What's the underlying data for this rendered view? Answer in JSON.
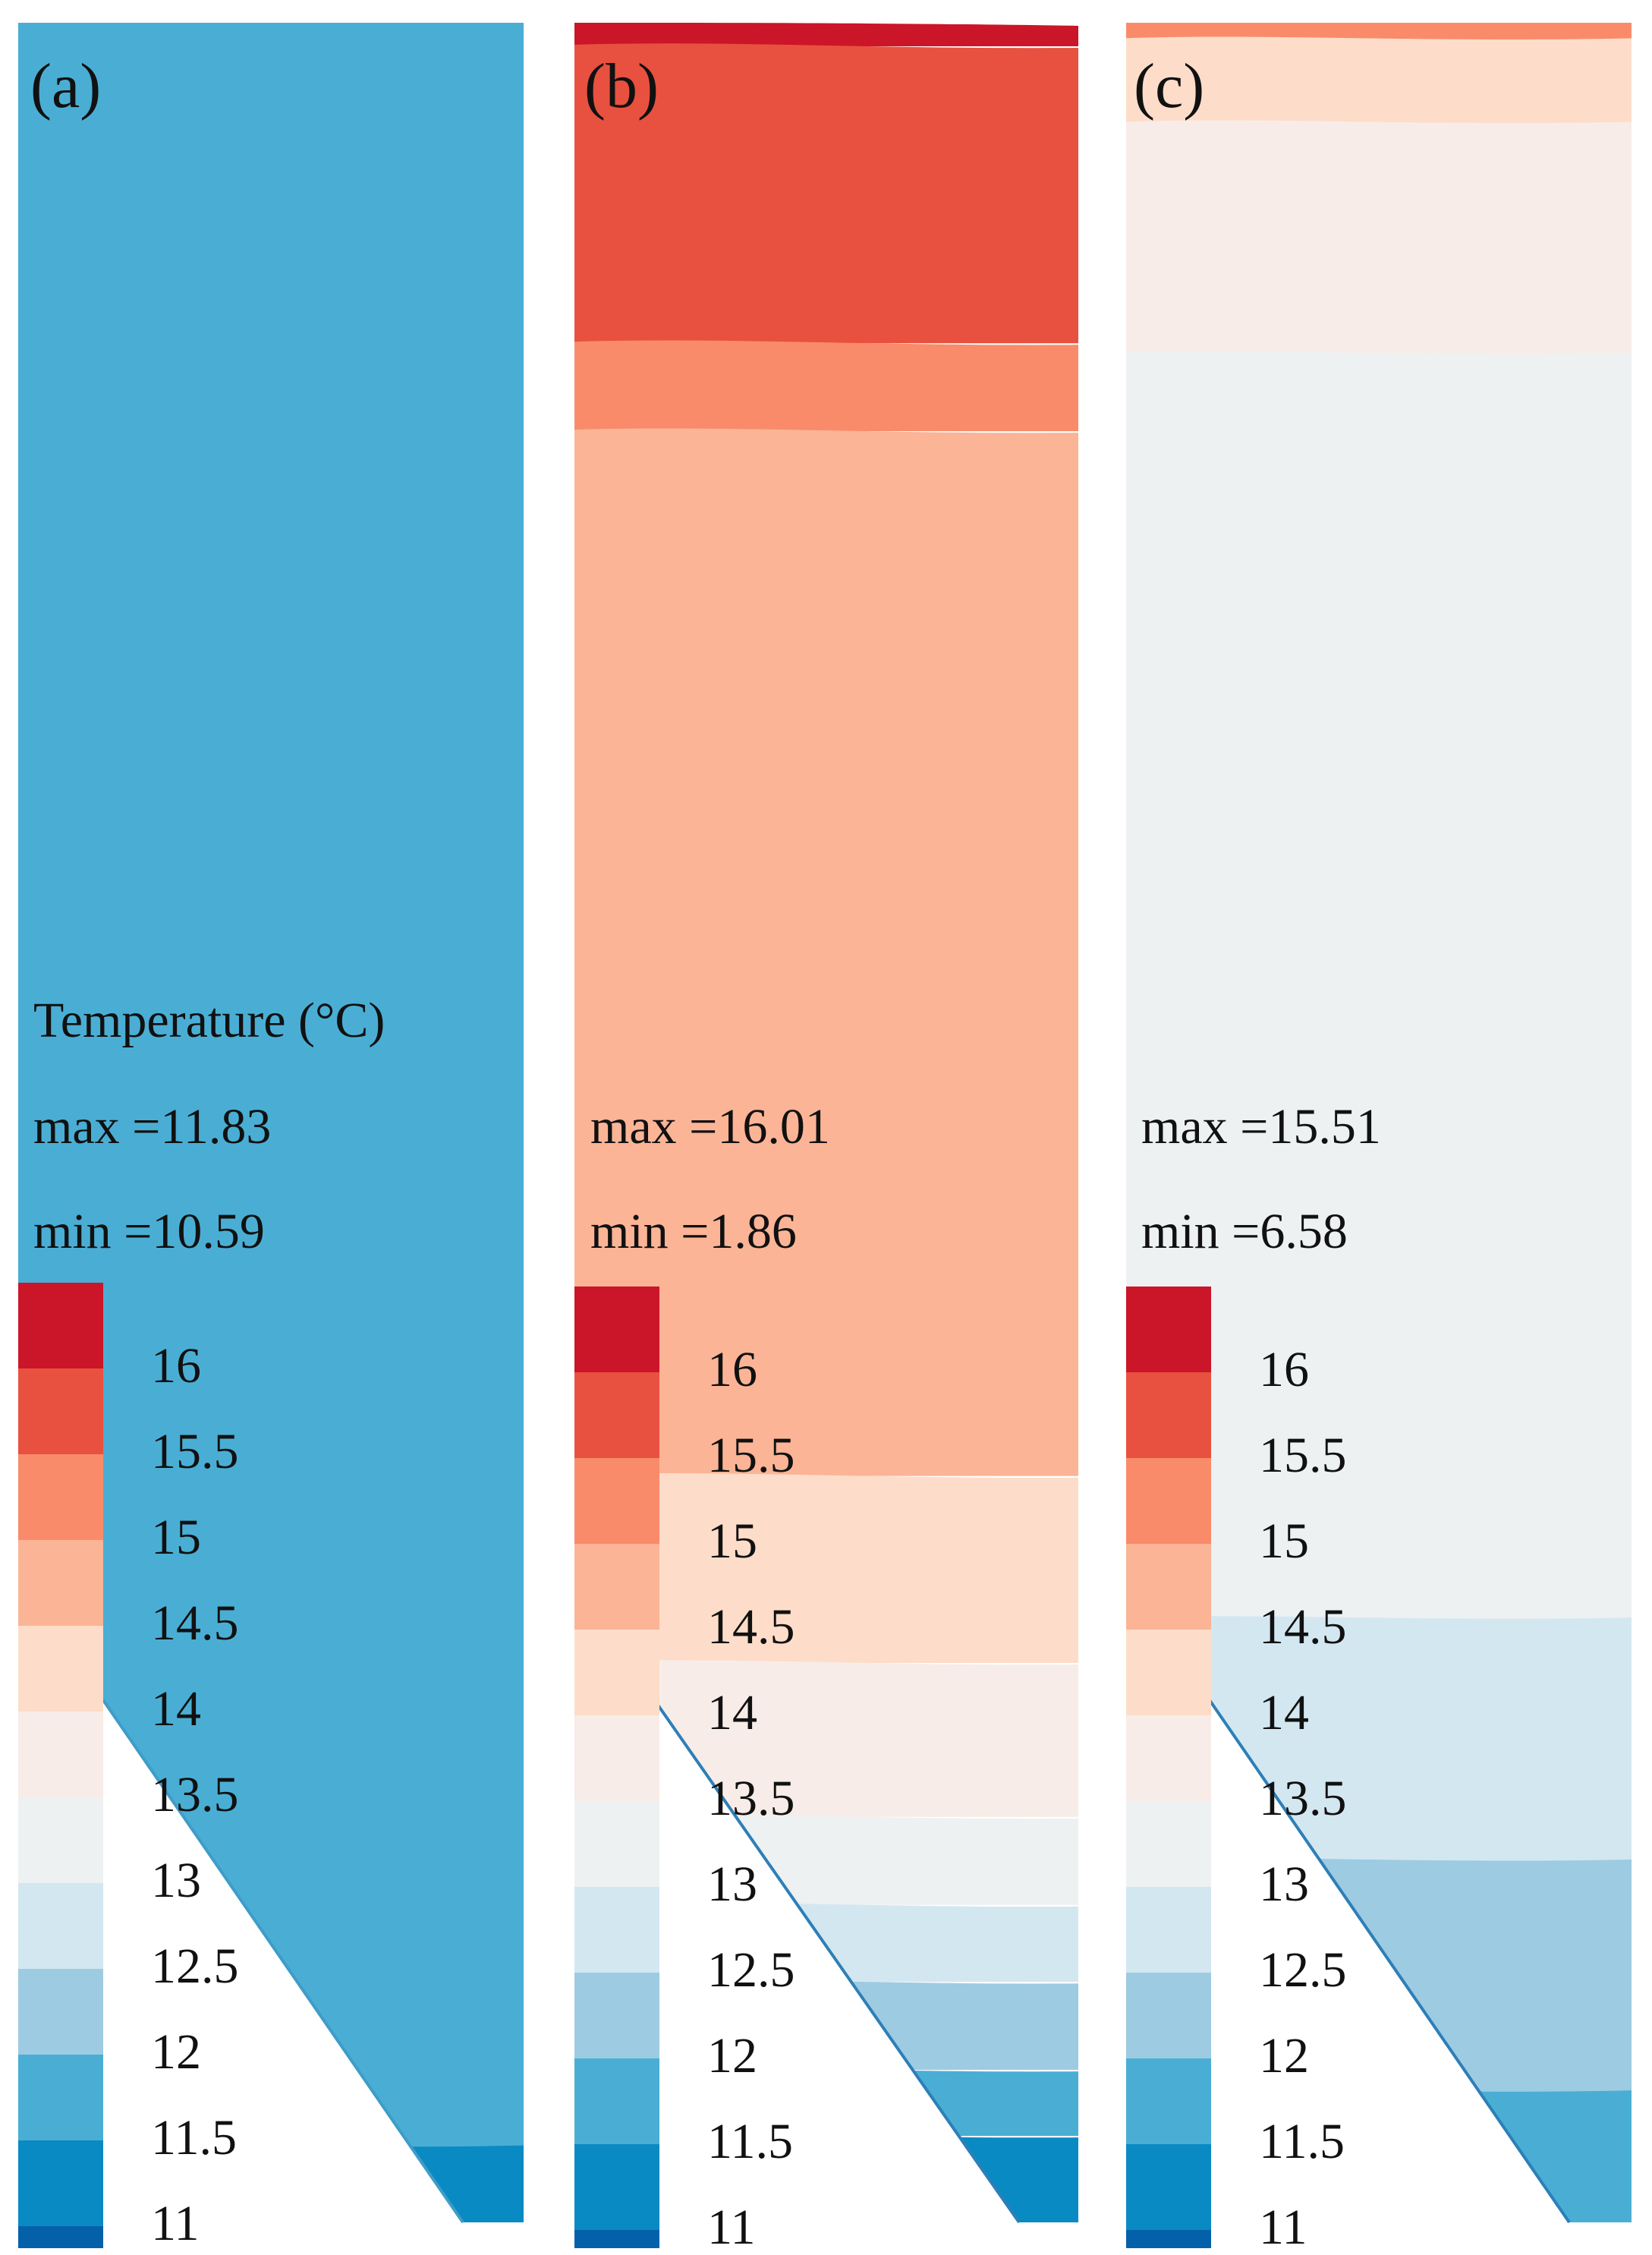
{
  "figure": {
    "colorbar_title": "Temperature (°C)",
    "colorbar_ticks": [
      "16",
      "15.5",
      "15",
      "14.5",
      "14",
      "13.5",
      "13",
      "12.5",
      "12",
      "11.5",
      "11"
    ],
    "colorbar_colors": [
      "#ca1628",
      "#e8513f",
      "#f98b6a",
      "#fbb496",
      "#fdddc9",
      "#f8ece8",
      "#edf1f2",
      "#d3e7f1",
      "#9dcbe2",
      "#4aaed4",
      "#0a8ac2",
      "#0560aa"
    ],
    "panels": [
      {
        "label": "(a)",
        "max_text": "max =11.83",
        "min_text": "min =10.59",
        "max_value": 11.83,
        "min_value": 10.59,
        "bands": [
          {
            "from": 1.0,
            "to": 0.035,
            "color": "#4aaed4"
          },
          {
            "from": 0.035,
            "to": 0.0,
            "color": "#0a8ac2"
          }
        ]
      },
      {
        "label": "(b)",
        "max_text": "max =16.01",
        "min_text": "min =1.86",
        "max_value": 16.01,
        "min_value": 1.86,
        "bands": [
          {
            "from": 1.0,
            "to": 0.99,
            "color": "#ca1628"
          },
          {
            "from": 0.99,
            "to": 0.855,
            "color": "#e8513f"
          },
          {
            "from": 0.855,
            "to": 0.815,
            "color": "#f98b6a"
          },
          {
            "from": 0.815,
            "to": 0.34,
            "color": "#fbb496"
          },
          {
            "from": 0.34,
            "to": 0.255,
            "color": "#fdddc9"
          },
          {
            "from": 0.255,
            "to": 0.185,
            "color": "#f8ece8"
          },
          {
            "from": 0.185,
            "to": 0.145,
            "color": "#edf1f2"
          },
          {
            "from": 0.145,
            "to": 0.11,
            "color": "#d3e7f1"
          },
          {
            "from": 0.11,
            "to": 0.07,
            "color": "#9dcbe2"
          },
          {
            "from": 0.07,
            "to": 0.04,
            "color": "#4aaed4"
          },
          {
            "from": 0.04,
            "to": 0.0,
            "color": "#0a8ac2"
          }
        ]
      },
      {
        "label": "(c)",
        "max_text": "max =15.51",
        "min_text": "min =6.58",
        "max_value": 15.51,
        "min_value": 6.58,
        "bands": [
          {
            "from": 1.0,
            "to": 0.993,
            "color": "#f98b6a"
          },
          {
            "from": 0.993,
            "to": 0.955,
            "color": "#fdddc9"
          },
          {
            "from": 0.955,
            "to": 0.85,
            "color": "#f8ece8"
          },
          {
            "from": 0.85,
            "to": 0.275,
            "color": "#edf1f2"
          },
          {
            "from": 0.275,
            "to": 0.165,
            "color": "#d3e7f1"
          },
          {
            "from": 0.165,
            "to": 0.06,
            "color": "#9dcbe2"
          },
          {
            "from": 0.06,
            "to": 0.0,
            "color": "#4aaed4"
          }
        ]
      }
    ]
  }
}
